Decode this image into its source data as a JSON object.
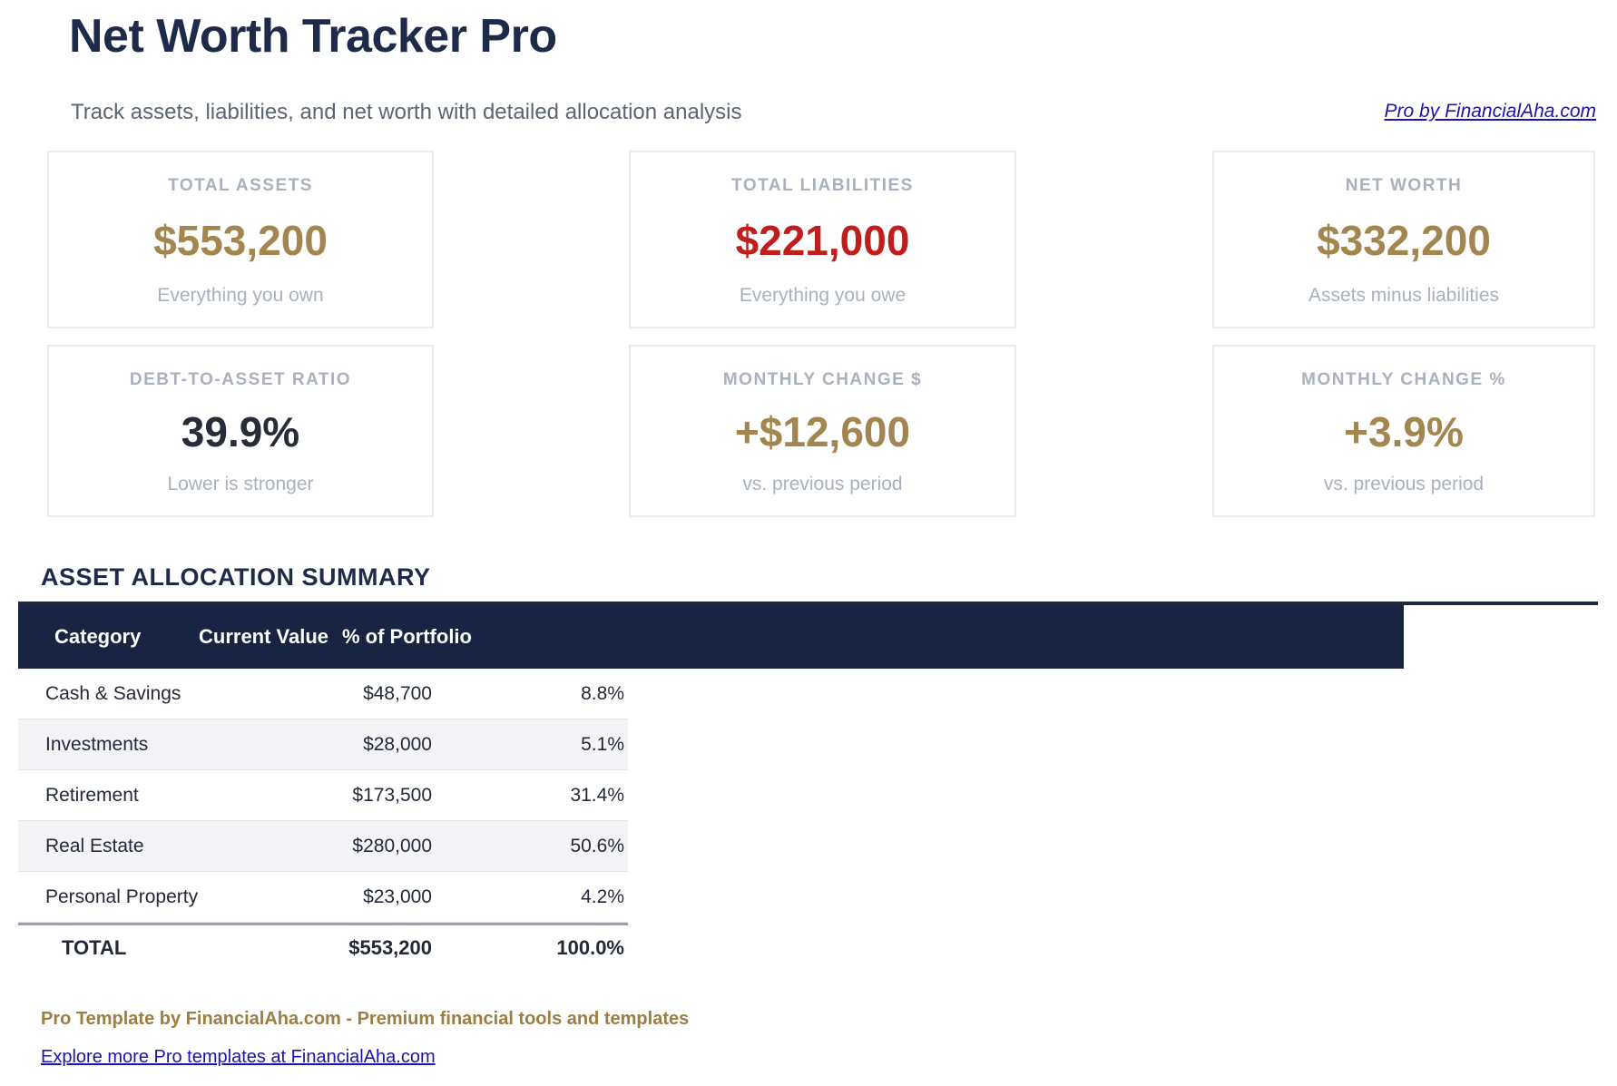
{
  "page": {
    "title": "Net Worth Tracker Pro",
    "subtitle": "Track assets, liabilities, and net worth with detailed allocation analysis",
    "header_link": "Pro by FinancialAha.com"
  },
  "colors": {
    "gold": "#a3854f",
    "red": "#bf1f1c",
    "dark": "#262c38",
    "navy": "#1d2a4a",
    "header_band": "#192442",
    "muted_label": "#a9b0bf",
    "link_blue": "#1e14a8"
  },
  "cards": [
    {
      "label": "TOTAL ASSETS",
      "value": "$553,200",
      "subtext": "Everything you own",
      "color": "gold"
    },
    {
      "label": "TOTAL LIABILITIES",
      "value": "$221,000",
      "subtext": "Everything you owe",
      "color": "red"
    },
    {
      "label": "NET WORTH",
      "value": "$332,200",
      "subtext": "Assets minus liabilities",
      "color": "gold"
    },
    {
      "label": "DEBT-TO-ASSET RATIO",
      "value": "39.9%",
      "subtext": "Lower is stronger",
      "color": "dark"
    },
    {
      "label": "MONTHLY CHANGE $",
      "value": "+$12,600",
      "subtext": "vs. previous period",
      "color": "gold"
    },
    {
      "label": "MONTHLY CHANGE %",
      "value": "+3.9%",
      "subtext": "vs. previous period",
      "color": "gold"
    }
  ],
  "table": {
    "section_title": "ASSET ALLOCATION SUMMARY",
    "columns": [
      "Category",
      "Current Value",
      "% of Portfolio"
    ],
    "rows": [
      {
        "category": "Cash & Savings",
        "value": "$48,700",
        "pct": "8.8%"
      },
      {
        "category": "Investments",
        "value": "$28,000",
        "pct": "5.1%"
      },
      {
        "category": "Retirement",
        "value": "$173,500",
        "pct": "31.4%"
      },
      {
        "category": "Real Estate",
        "value": "$280,000",
        "pct": "50.6%"
      },
      {
        "category": "Personal Property",
        "value": "$23,000",
        "pct": "4.2%"
      }
    ],
    "total_row": {
      "category": "TOTAL",
      "value": "$553,200",
      "pct": "100.0%"
    }
  },
  "footer": {
    "tagline": "Pro Template by FinancialAha.com - Premium financial tools and templates",
    "link": "Explore more Pro templates at FinancialAha.com"
  }
}
